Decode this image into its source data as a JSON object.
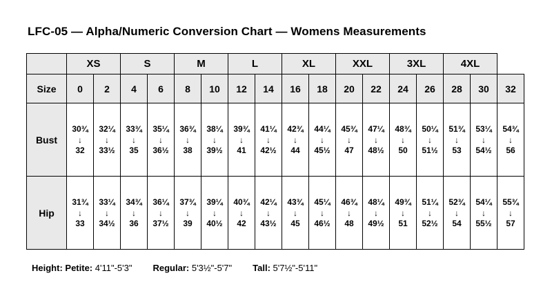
{
  "title": "LFC-05 — Alpha/Numeric Conversion Chart — Womens Measurements",
  "table": {
    "arrow": "↓",
    "alpha_groups": [
      {
        "label": "",
        "span": 1
      },
      {
        "label": "XS",
        "span": 2
      },
      {
        "label": "S",
        "span": 2
      },
      {
        "label": "M",
        "span": 2
      },
      {
        "label": "L",
        "span": 2
      },
      {
        "label": "XL",
        "span": 2
      },
      {
        "label": "XXL",
        "span": 2
      },
      {
        "label": "3XL",
        "span": 2
      },
      {
        "label": "4XL",
        "span": 2
      }
    ],
    "size_row_label": "Size",
    "sizes": [
      "0",
      "2",
      "4",
      "6",
      "8",
      "10",
      "12",
      "14",
      "16",
      "18",
      "20",
      "22",
      "24",
      "26",
      "28",
      "30",
      "32"
    ],
    "rows": [
      {
        "label": "Bust",
        "cells": [
          {
            "top": "30¾",
            "bottom": "32"
          },
          {
            "top": "32¼",
            "bottom": "33½"
          },
          {
            "top": "33¾",
            "bottom": "35"
          },
          {
            "top": "35¼",
            "bottom": "36½"
          },
          {
            "top": "36¾",
            "bottom": "38"
          },
          {
            "top": "38¼",
            "bottom": "39½"
          },
          {
            "top": "39¾",
            "bottom": "41"
          },
          {
            "top": "41¼",
            "bottom": "42½"
          },
          {
            "top": "42¾",
            "bottom": "44"
          },
          {
            "top": "44¼",
            "bottom": "45½"
          },
          {
            "top": "45¾",
            "bottom": "47"
          },
          {
            "top": "47¼",
            "bottom": "48½"
          },
          {
            "top": "48¾",
            "bottom": "50"
          },
          {
            "top": "50¼",
            "bottom": "51½"
          },
          {
            "top": "51¾",
            "bottom": "53"
          },
          {
            "top": "53¼",
            "bottom": "54½"
          },
          {
            "top": "54¾",
            "bottom": "56"
          }
        ]
      },
      {
        "label": "Hip",
        "cells": [
          {
            "top": "31¾",
            "bottom": "33"
          },
          {
            "top": "33¼",
            "bottom": "34½"
          },
          {
            "top": "34¾",
            "bottom": "36"
          },
          {
            "top": "36¼",
            "bottom": "37½"
          },
          {
            "top": "37¾",
            "bottom": "39"
          },
          {
            "top": "39¼",
            "bottom": "40½"
          },
          {
            "top": "40¾",
            "bottom": "42"
          },
          {
            "top": "42¼",
            "bottom": "43½"
          },
          {
            "top": "43¾",
            "bottom": "45"
          },
          {
            "top": "45¼",
            "bottom": "46½"
          },
          {
            "top": "46¾",
            "bottom": "48"
          },
          {
            "top": "48¼",
            "bottom": "49½"
          },
          {
            "top": "49¾",
            "bottom": "51"
          },
          {
            "top": "51¼",
            "bottom": "52½"
          },
          {
            "top": "52¾",
            "bottom": "54"
          },
          {
            "top": "54¼",
            "bottom": "55½"
          },
          {
            "top": "55¾",
            "bottom": "57"
          }
        ]
      }
    ]
  },
  "footer": {
    "height_label": "Height:",
    "petite_label": "Petite:",
    "petite_value": "4'11\"-5'3\"",
    "regular_label": "Regular:",
    "regular_value": "5'3½\"-5'7\"",
    "tall_label": "Tall:",
    "tall_value": "5'7½\"-5'11\""
  }
}
